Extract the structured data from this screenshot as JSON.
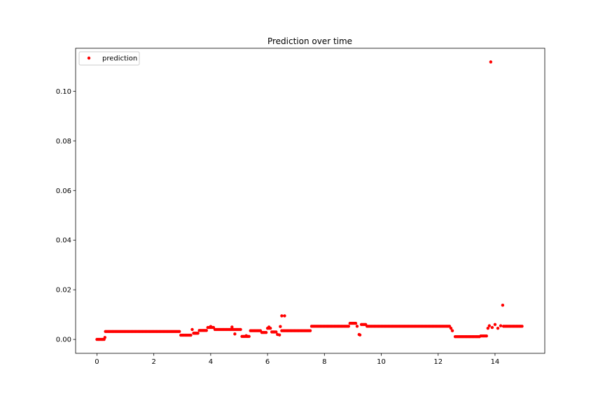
{
  "chart_data": {
    "type": "scatter",
    "title": "Prediction over time",
    "xlabel": "",
    "ylabel": "",
    "xlim": [
      -0.75,
      15.75
    ],
    "ylim": [
      -0.0056,
      0.1173
    ],
    "xticks": [
      0,
      2,
      4,
      6,
      8,
      10,
      12,
      14
    ],
    "xtick_labels": [
      "0",
      "2",
      "4",
      "6",
      "8",
      "10",
      "12",
      "14"
    ],
    "yticks": [
      0.0,
      0.02,
      0.04,
      0.06,
      0.08,
      0.1
    ],
    "ytick_labels": [
      "0.00",
      "0.02",
      "0.04",
      "0.06",
      "0.08",
      "0.10"
    ],
    "grid": false,
    "legend": {
      "position": "top-left",
      "entries": [
        "prediction"
      ]
    },
    "series": [
      {
        "name": "prediction",
        "color": "#ff0000",
        "marker": "circle",
        "segments": [
          {
            "x_start": 0.0,
            "x_end": 0.25,
            "step": 0.05,
            "y": 0.0
          },
          {
            "x_start": 0.3,
            "x_end": 2.9,
            "step": 0.05,
            "y": 0.0032
          },
          {
            "x_start": 2.95,
            "x_end": 3.3,
            "step": 0.05,
            "y": 0.0017
          },
          {
            "x_start": 3.4,
            "x_end": 3.55,
            "step": 0.05,
            "y": 0.0025
          },
          {
            "x_start": 3.6,
            "x_end": 3.85,
            "step": 0.05,
            "y": 0.0036
          },
          {
            "x_start": 3.9,
            "x_end": 4.1,
            "step": 0.05,
            "y": 0.0048
          },
          {
            "x_start": 4.15,
            "x_end": 5.05,
            "step": 0.05,
            "y": 0.004
          },
          {
            "x_start": 5.1,
            "x_end": 5.35,
            "step": 0.05,
            "y": 0.0012
          },
          {
            "x_start": 5.4,
            "x_end": 5.75,
            "step": 0.05,
            "y": 0.0035
          },
          {
            "x_start": 5.8,
            "x_end": 5.95,
            "step": 0.05,
            "y": 0.0028
          },
          {
            "x_start": 6.0,
            "x_end": 6.1,
            "step": 0.05,
            "y": 0.0045
          },
          {
            "x_start": 6.15,
            "x_end": 6.3,
            "step": 0.05,
            "y": 0.003
          },
          {
            "x_start": 6.5,
            "x_end": 7.5,
            "step": 0.05,
            "y": 0.0035
          },
          {
            "x_start": 7.55,
            "x_end": 8.85,
            "step": 0.05,
            "y": 0.0053
          },
          {
            "x_start": 8.9,
            "x_end": 9.1,
            "step": 0.05,
            "y": 0.0065
          },
          {
            "x_start": 9.3,
            "x_end": 9.45,
            "step": 0.05,
            "y": 0.006
          },
          {
            "x_start": 9.5,
            "x_end": 12.4,
            "step": 0.05,
            "y": 0.0053
          },
          {
            "x_start": 12.6,
            "x_end": 13.45,
            "step": 0.05,
            "y": 0.0011
          },
          {
            "x_start": 13.5,
            "x_end": 13.7,
            "step": 0.05,
            "y": 0.0014
          },
          {
            "x_start": 14.3,
            "x_end": 14.95,
            "step": 0.05,
            "y": 0.0053
          }
        ],
        "points": [
          [
            0.28,
            0.0008
          ],
          [
            3.35,
            0.004
          ],
          [
            3.45,
            0.0025
          ],
          [
            4.0,
            0.0052
          ],
          [
            4.75,
            0.005
          ],
          [
            4.85,
            0.0022
          ],
          [
            5.25,
            0.0015
          ],
          [
            6.05,
            0.005
          ],
          [
            6.35,
            0.002
          ],
          [
            6.42,
            0.0018
          ],
          [
            6.45,
            0.0052
          ],
          [
            6.5,
            0.0095
          ],
          [
            6.6,
            0.0095
          ],
          [
            9.15,
            0.0053
          ],
          [
            9.22,
            0.002
          ],
          [
            9.25,
            0.0018
          ],
          [
            12.45,
            0.0045
          ],
          [
            12.5,
            0.0035
          ],
          [
            13.75,
            0.0045
          ],
          [
            13.8,
            0.0055
          ],
          [
            13.85,
            0.1118
          ],
          [
            13.9,
            0.0048
          ],
          [
            14.0,
            0.006
          ],
          [
            14.1,
            0.0045
          ],
          [
            14.2,
            0.0055
          ],
          [
            14.27,
            0.0138
          ]
        ]
      }
    ]
  }
}
